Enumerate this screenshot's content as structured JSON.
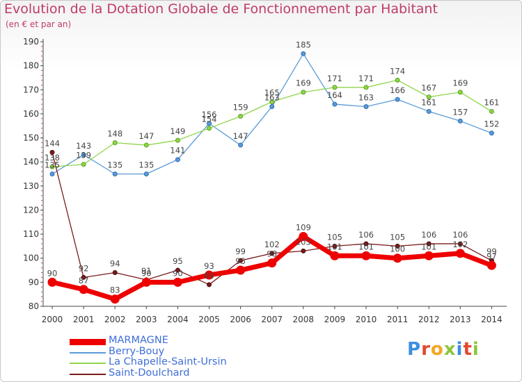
{
  "chart_data": {
    "type": "line",
    "title": "Evolution de la Dotation Globale de Fonctionnement par Habitant",
    "subtitle": "(en € et par an)",
    "x": [
      "2000",
      "2001",
      "2002",
      "2003",
      "2004",
      "2005",
      "2006",
      "2007",
      "2008",
      "2009",
      "2010",
      "2011",
      "2012",
      "2013",
      "2014"
    ],
    "yticks": [
      "80",
      "90",
      "100",
      "110",
      "120",
      "130",
      "140",
      "150",
      "160",
      "170",
      "180",
      "190"
    ],
    "ylim": [
      80,
      190
    ],
    "grid": false,
    "legend_position": "bottom-left",
    "series": [
      {
        "name": "MARMAGNE",
        "color": "#ee0000",
        "values": [
          90,
          87,
          83,
          90,
          90,
          93,
          95,
          98,
          109,
          101,
          101,
          100,
          101,
          102,
          97
        ]
      },
      {
        "name": "Berry-Bouy",
        "color": "#5a9ad6",
        "values": [
          135,
          143,
          135,
          135,
          141,
          156,
          147,
          163,
          185,
          164,
          163,
          166,
          161,
          157,
          152
        ]
      },
      {
        "name": "La Chapelle-Saint-Ursin",
        "color": "#8fd44a",
        "values": [
          138,
          139,
          148,
          147,
          149,
          154,
          159,
          165,
          169,
          171,
          171,
          174,
          167,
          169,
          161
        ]
      },
      {
        "name": "Saint-Doulchard",
        "color": "#7a1a1a",
        "values": [
          144,
          92,
          94,
          91,
          95,
          89,
          99,
          102,
          103,
          105,
          106,
          105,
          106,
          106,
          99
        ]
      }
    ]
  },
  "logo": {
    "text": "Proxiti",
    "colors": [
      "#3c8ee0",
      "#e24a2f",
      "#f6a623",
      "#8cc63f",
      "#3c8ee0",
      "#e24a2f",
      "#8cc63f"
    ]
  }
}
